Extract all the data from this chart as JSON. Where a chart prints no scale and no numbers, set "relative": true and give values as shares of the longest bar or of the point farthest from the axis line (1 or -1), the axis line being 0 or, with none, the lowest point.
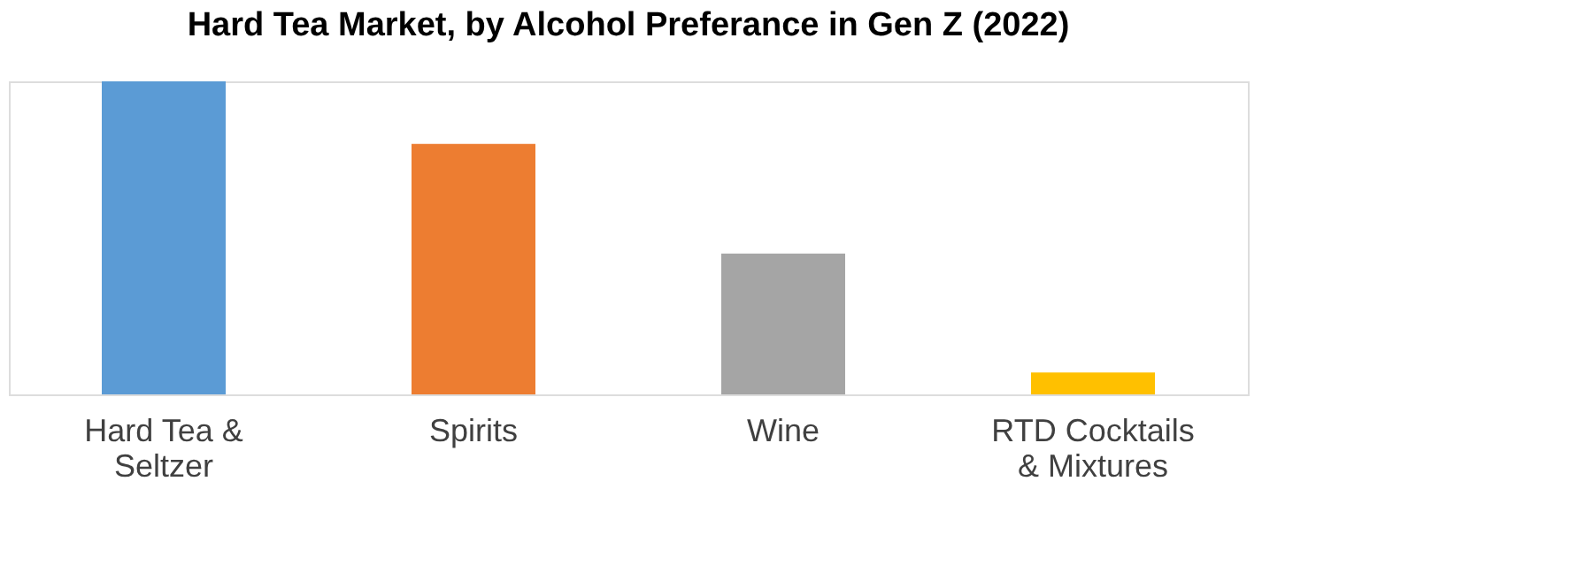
{
  "chart_data": {
    "type": "bar",
    "title": "Hard Tea Market, by Alcohol Preferance in Gen Z (2022)",
    "categories": [
      "Hard Tea & Seltzer",
      "Spirits",
      "Wine",
      "RTD Cocktails & Mixtures"
    ],
    "values": [
      1,
      0.8,
      0.45,
      0.07
    ],
    "colors": [
      "#5b9bd5",
      "#ed7d31",
      "#a5a5a5",
      "#ffc000"
    ],
    "relative": true,
    "grid": false,
    "legend": false
  }
}
